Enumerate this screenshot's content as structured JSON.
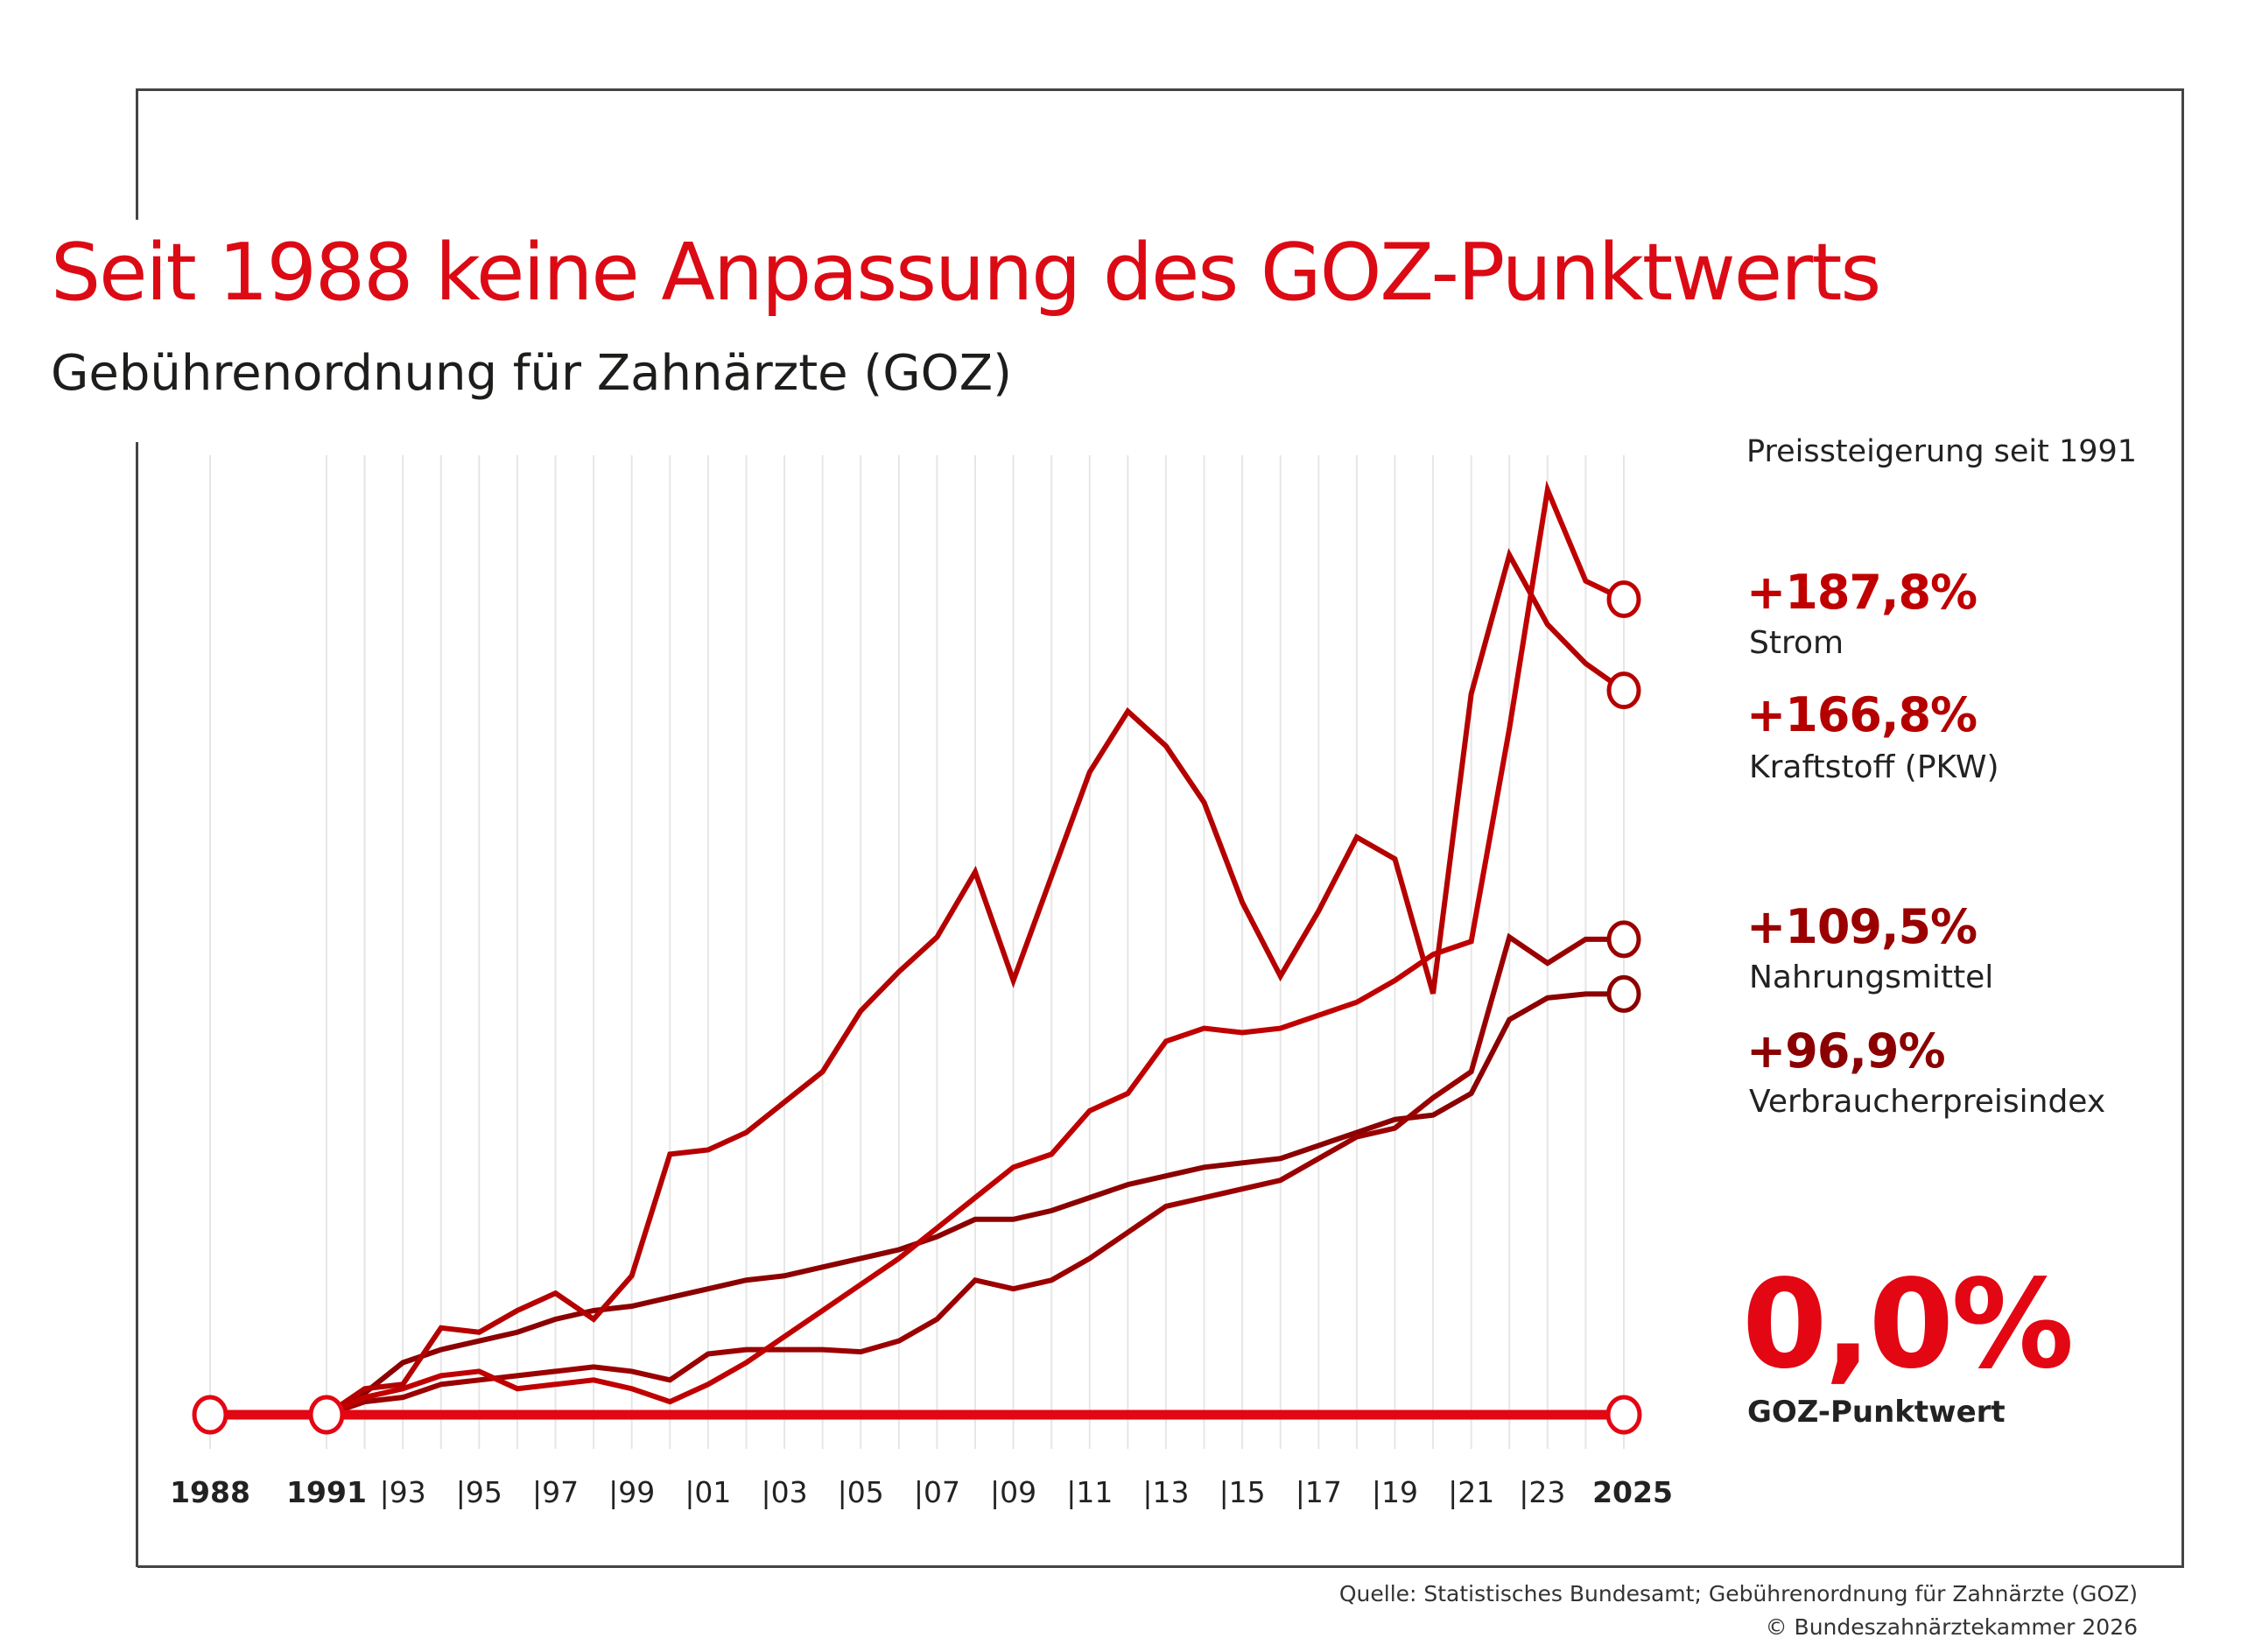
{
  "header": {
    "title": "Seit 1988 keine Anpassung des GOZ-Punktwerts",
    "subtitle": "Gebührenordnung für Zahnärzte (GOZ)"
  },
  "legend": {
    "heading": "Preissteigerung seit 1991",
    "items": [
      {
        "value": "+187,8%",
        "label": "Strom",
        "color": "#c00000"
      },
      {
        "value": "+166,8%",
        "label": "Kraftstoff (PKW)",
        "color": "#b80000"
      },
      {
        "value": "+109,5%",
        "label": "Nahrungsmittel",
        "color": "#990000"
      },
      {
        "value": "+96,9%",
        "label": "Verbraucherpreisindex",
        "color": "#8b0000"
      }
    ],
    "goz": {
      "value": "0,0%",
      "label": "GOZ-Punktwert",
      "color": "#e30613"
    }
  },
  "footer": {
    "source": "Quelle: Statistisches Bundesamt; Gebührenordnung für Zahnärzte (GOZ)",
    "copyright": "© Bundeszahnärztekammer 2026"
  },
  "chart_data": {
    "type": "line",
    "title": "Seit 1988 keine Anpassung des GOZ-Punktwerts",
    "xlabel": "",
    "ylabel": "Preissteigerung seit 1991 (%)",
    "ylim": [
      0,
      215
    ],
    "grid": "vertical",
    "legend_placement": "right",
    "x_tick_labels": [
      {
        "year": 1988,
        "label": "1988",
        "bold": true
      },
      {
        "year": 1991,
        "label": "1991",
        "bold": true
      },
      {
        "year": 1993,
        "label": "|93"
      },
      {
        "year": 1995,
        "label": "|95"
      },
      {
        "year": 1997,
        "label": "|97"
      },
      {
        "year": 1999,
        "label": "|99"
      },
      {
        "year": 2001,
        "label": "|01"
      },
      {
        "year": 2003,
        "label": "|03"
      },
      {
        "year": 2005,
        "label": "|05"
      },
      {
        "year": 2007,
        "label": "|07"
      },
      {
        "year": 2009,
        "label": "|09"
      },
      {
        "year": 2011,
        "label": "|11"
      },
      {
        "year": 2013,
        "label": "|13"
      },
      {
        "year": 2015,
        "label": "|15"
      },
      {
        "year": 2017,
        "label": "|17"
      },
      {
        "year": 2019,
        "label": "|19"
      },
      {
        "year": 2021,
        "label": "|21"
      },
      {
        "year": 2023,
        "label": "|23"
      },
      {
        "year": 2025,
        "label": "2025",
        "bold": true
      }
    ],
    "x": [
      1991,
      1992,
      1993,
      1994,
      1995,
      1996,
      1997,
      1998,
      1999,
      2000,
      2001,
      2002,
      2003,
      2004,
      2005,
      2006,
      2007,
      2008,
      2009,
      2010,
      2011,
      2012,
      2013,
      2014,
      2015,
      2016,
      2017,
      2018,
      2019,
      2020,
      2021,
      2022,
      2023,
      2024,
      2025
    ],
    "series": [
      {
        "name": "Strom",
        "color": "#c00000",
        "values": [
          0,
          4,
          6,
          9,
          10,
          6,
          7,
          8,
          6,
          3,
          7,
          12,
          18,
          24,
          30,
          36,
          43,
          50,
          57,
          60,
          70,
          74,
          86,
          89,
          88,
          89,
          92,
          95,
          100,
          106,
          109,
          158,
          213,
          192,
          187.8
        ]
      },
      {
        "name": "Kraftstoff (PKW)",
        "color": "#b50000",
        "values": [
          0,
          6,
          7,
          20,
          19,
          24,
          28,
          22,
          32,
          60,
          61,
          65,
          72,
          79,
          93,
          102,
          110,
          125,
          100,
          124,
          148,
          162,
          154,
          141,
          118,
          101,
          116,
          133,
          128,
          97,
          166,
          198,
          182,
          173,
          166.8
        ]
      },
      {
        "name": "Nahrungsmittel",
        "color": "#9a0000",
        "values": [
          0,
          3,
          4,
          7,
          8,
          9,
          10,
          11,
          10,
          8,
          14,
          15,
          15,
          15,
          14.5,
          17,
          22,
          31,
          29,
          31,
          36,
          42,
          48,
          50,
          52,
          54,
          59,
          64,
          66,
          73,
          79,
          110,
          104,
          109.5,
          109.5
        ]
      },
      {
        "name": "Verbraucherpreisindex",
        "color": "#8b0000",
        "values": [
          0,
          5,
          12,
          15,
          17,
          19,
          22,
          24,
          25,
          27,
          29,
          31,
          32,
          34,
          36,
          38,
          41,
          45,
          45,
          47,
          50,
          53,
          55,
          57,
          58,
          59,
          62,
          65,
          68,
          69,
          74,
          91,
          96,
          96.9,
          96.9
        ]
      },
      {
        "name": "GOZ-Punktwert",
        "color": "#e30613",
        "x": [
          1988,
          1991,
          2025
        ],
        "values": [
          0,
          0,
          0
        ]
      }
    ],
    "end_labels": {
      "Strom": 187.8,
      "Kraftstoff (PKW)": 166.8,
      "Nahrungsmittel": 109.5,
      "Verbraucherpreisindex": 96.9,
      "GOZ-Punktwert": 0.0
    }
  }
}
